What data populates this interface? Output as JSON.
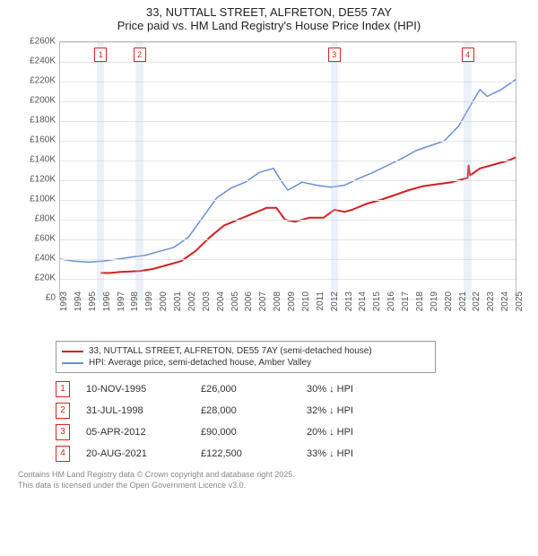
{
  "title_line1": "33, NUTTALL STREET, ALFRETON, DE55 7AY",
  "title_line2": "Price paid vs. HM Land Registry's House Price Index (HPI)",
  "chart": {
    "type": "line",
    "x_years": [
      1993,
      1994,
      1995,
      1996,
      1997,
      1998,
      1999,
      2000,
      2001,
      2002,
      2003,
      2004,
      2005,
      2006,
      2007,
      2008,
      2009,
      2010,
      2011,
      2012,
      2013,
      2014,
      2015,
      2016,
      2017,
      2018,
      2019,
      2020,
      2021,
      2022,
      2023,
      2024,
      2025
    ],
    "ylim": [
      0,
      260000
    ],
    "ytick_step": 20000,
    "ytick_labels": [
      "£0",
      "£20K",
      "£40K",
      "£60K",
      "£80K",
      "£100K",
      "£120K",
      "£140K",
      "£160K",
      "£180K",
      "£200K",
      "£220K",
      "£240K",
      "£260K"
    ],
    "background_color": "#ffffff",
    "grid_color": "#e6e6e6",
    "axis_color": "#bbbbbb",
    "series": {
      "property": {
        "name": "33, NUTTALL STREET, ALFRETON, DE55 7AY (semi-detached house)",
        "color": "#d42020",
        "width": 2,
        "points": [
          [
            1995.86,
            26000
          ],
          [
            1996.5,
            26000
          ],
          [
            1997.2,
            27000
          ],
          [
            1998.58,
            28000
          ],
          [
            1999.5,
            30000
          ],
          [
            2000.5,
            34000
          ],
          [
            2001.5,
            38000
          ],
          [
            2002.5,
            48000
          ],
          [
            2003.5,
            62000
          ],
          [
            2004.5,
            74000
          ],
          [
            2005.5,
            80000
          ],
          [
            2006.5,
            86000
          ],
          [
            2007.5,
            92000
          ],
          [
            2008.2,
            92000
          ],
          [
            2008.8,
            80000
          ],
          [
            2009.5,
            78000
          ],
          [
            2010.5,
            82000
          ],
          [
            2011.5,
            82000
          ],
          [
            2012.26,
            90000
          ],
          [
            2013.0,
            88000
          ],
          [
            2013.5,
            90000
          ],
          [
            2014.5,
            96000
          ],
          [
            2015.5,
            100000
          ],
          [
            2016.5,
            105000
          ],
          [
            2017.5,
            110000
          ],
          [
            2018.5,
            114000
          ],
          [
            2019.5,
            116000
          ],
          [
            2020.5,
            118000
          ],
          [
            2021.63,
            122500
          ],
          [
            2021.7,
            135000
          ],
          [
            2021.8,
            125000
          ],
          [
            2022.5,
            132000
          ],
          [
            2023.5,
            136000
          ],
          [
            2024.5,
            140000
          ],
          [
            2025.3,
            145000
          ]
        ]
      },
      "hpi": {
        "name": "HPI: Average price, semi-detached house, Amber Valley",
        "color": "#6a8fd4",
        "width": 1.5,
        "points": [
          [
            1993.0,
            40000
          ],
          [
            1994.0,
            38000
          ],
          [
            1995.0,
            37000
          ],
          [
            1996.0,
            38000
          ],
          [
            1997.0,
            40000
          ],
          [
            1998.0,
            42000
          ],
          [
            1999.0,
            44000
          ],
          [
            2000.0,
            48000
          ],
          [
            2001.0,
            52000
          ],
          [
            2002.0,
            62000
          ],
          [
            2003.0,
            82000
          ],
          [
            2004.0,
            102000
          ],
          [
            2005.0,
            112000
          ],
          [
            2006.0,
            118000
          ],
          [
            2007.0,
            128000
          ],
          [
            2008.0,
            132000
          ],
          [
            2008.5,
            120000
          ],
          [
            2009.0,
            110000
          ],
          [
            2010.0,
            118000
          ],
          [
            2011.0,
            115000
          ],
          [
            2012.0,
            113000
          ],
          [
            2013.0,
            115000
          ],
          [
            2014.0,
            122000
          ],
          [
            2015.0,
            128000
          ],
          [
            2016.0,
            135000
          ],
          [
            2017.0,
            142000
          ],
          [
            2018.0,
            150000
          ],
          [
            2019.0,
            155000
          ],
          [
            2020.0,
            160000
          ],
          [
            2021.0,
            175000
          ],
          [
            2022.0,
            200000
          ],
          [
            2022.5,
            212000
          ],
          [
            2023.0,
            205000
          ],
          [
            2024.0,
            212000
          ],
          [
            2025.0,
            222000
          ],
          [
            2025.3,
            225000
          ]
        ]
      }
    },
    "sale_markers": [
      {
        "n": "1",
        "x": 1995.86,
        "band": [
          1995.6,
          1996.1
        ]
      },
      {
        "n": "2",
        "x": 1998.58,
        "band": [
          1998.3,
          1998.85
        ]
      },
      {
        "n": "3",
        "x": 2012.26,
        "band": [
          2012.0,
          2012.5
        ]
      },
      {
        "n": "4",
        "x": 2021.63,
        "band": [
          2021.35,
          2021.9
        ]
      }
    ]
  },
  "legend": {
    "row1": "33, NUTTALL STREET, ALFRETON, DE55 7AY (semi-detached house)",
    "row2": "HPI: Average price, semi-detached house, Amber Valley"
  },
  "sales_table": [
    {
      "n": "1",
      "date": "10-NOV-1995",
      "price": "£26,000",
      "diff": "30% ↓ HPI"
    },
    {
      "n": "2",
      "date": "31-JUL-1998",
      "price": "£28,000",
      "diff": "32% ↓ HPI"
    },
    {
      "n": "3",
      "date": "05-APR-2012",
      "price": "£90,000",
      "diff": "20% ↓ HPI"
    },
    {
      "n": "4",
      "date": "20-AUG-2021",
      "price": "£122,500",
      "diff": "33% ↓ HPI"
    }
  ],
  "footer_line1": "Contains HM Land Registry data © Crown copyright and database right 2025.",
  "footer_line2": "This data is licensed under the Open Government Licence v3.0."
}
